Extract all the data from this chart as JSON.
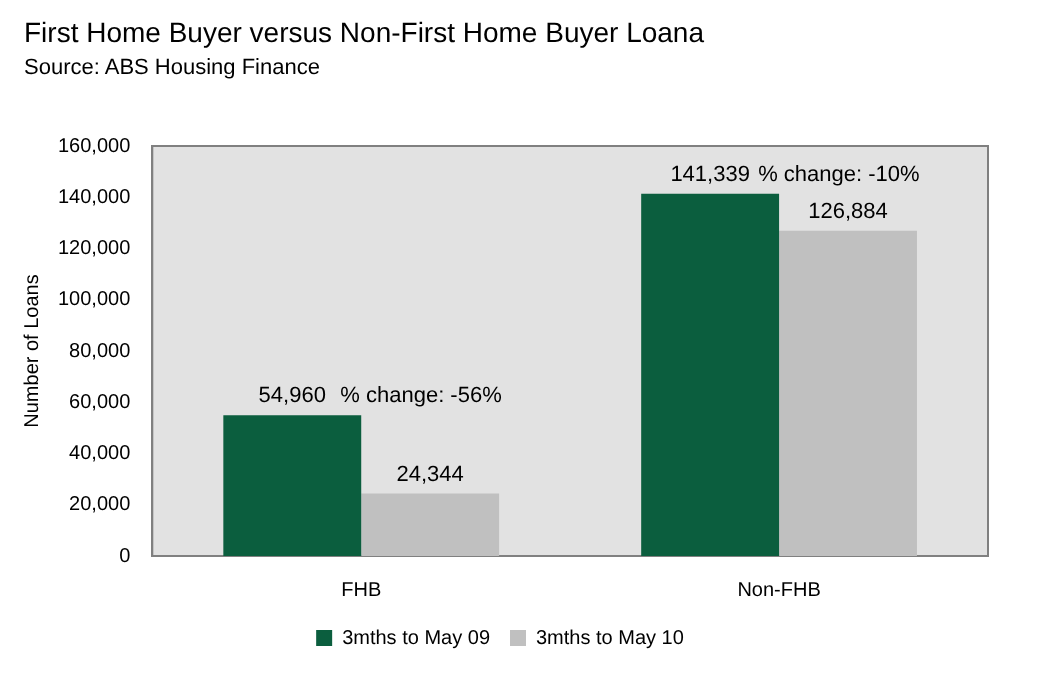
{
  "chart_data": {
    "type": "bar",
    "title": "First Home Buyer versus Non-First Home Buyer Loana",
    "subtitle": "Source: ABS Housing Finance",
    "ylabel": "Number of Loans",
    "categories": [
      "FHB",
      "Non-FHB"
    ],
    "series": [
      {
        "name": "3mths to May 09",
        "color": "#0b5e3e",
        "values": [
          54960,
          141339
        ],
        "value_labels": [
          "54,960",
          "141,339"
        ]
      },
      {
        "name": "3mths to May 10",
        "color": "#c0c0c0",
        "values": [
          24344,
          126884
        ],
        "value_labels": [
          "24,344",
          "126,884"
        ]
      }
    ],
    "ylim": [
      0,
      160000
    ],
    "yticks": [
      0,
      {
        "value": 20000,
        "label": "20,000"
      },
      {
        "value": 40000,
        "label": "40,000"
      },
      {
        "value": 60000,
        "label": "60,000"
      },
      {
        "value": 80000,
        "label": "80,000"
      },
      {
        "value": 100000,
        "label": "100,000"
      },
      {
        "value": 120000,
        "label": "120,000"
      },
      {
        "value": 140000,
        "label": "140,000"
      },
      {
        "value": 160000,
        "label": "160,000"
      }
    ],
    "legend": "bottom",
    "grid": false,
    "annotations": [
      "% change: -56%",
      "% change: -10%"
    ]
  }
}
